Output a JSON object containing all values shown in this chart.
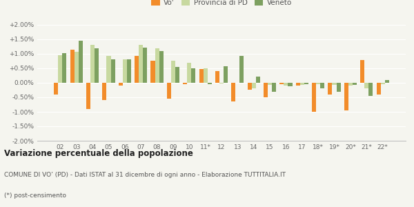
{
  "categories": [
    "02",
    "03",
    "04",
    "05",
    "06",
    "07",
    "08",
    "09",
    "10",
    "11*",
    "12",
    "13",
    "14",
    "15",
    "16",
    "17",
    "18*",
    "19*",
    "20*",
    "21*",
    "22*"
  ],
  "vo": [
    -0.4,
    1.15,
    -0.9,
    -0.6,
    -0.1,
    0.92,
    0.75,
    -0.55,
    -0.05,
    0.47,
    0.4,
    -0.65,
    -0.25,
    -0.5,
    -0.05,
    -0.1,
    -1.0,
    -0.4,
    -0.95,
    0.78,
    -0.4
  ],
  "provincia_pd": [
    0.95,
    1.08,
    1.32,
    0.92,
    0.8,
    1.3,
    1.2,
    0.75,
    0.68,
    0.5,
    -0.02,
    0.0,
    -0.18,
    -0.07,
    -0.1,
    -0.07,
    -0.05,
    -0.08,
    -0.1,
    -0.2,
    -0.05
  ],
  "veneto": [
    1.02,
    1.45,
    1.2,
    0.82,
    0.8,
    1.22,
    1.1,
    0.55,
    0.5,
    -0.05,
    0.58,
    0.93,
    0.22,
    -0.3,
    -0.13,
    -0.05,
    -0.18,
    -0.3,
    -0.08,
    -0.45,
    0.1
  ],
  "color_vo": "#f28c2a",
  "color_provincia": "#c8d9a0",
  "color_veneto": "#7da060",
  "title": "Variazione percentuale della popolazione",
  "subtitle1": "COMUNE DI VO’ (PD) - Dati ISTAT al 31 dicembre di ogni anno - Elaborazione TUTTITALIA.IT",
  "subtitle2": "(*) post-censimento",
  "bg_color": "#f5f5ef",
  "ylim": [
    -2.0,
    2.0
  ],
  "yticks": [
    -2.0,
    -1.5,
    -1.0,
    -0.5,
    0.0,
    0.5,
    1.0,
    1.5,
    2.0
  ]
}
